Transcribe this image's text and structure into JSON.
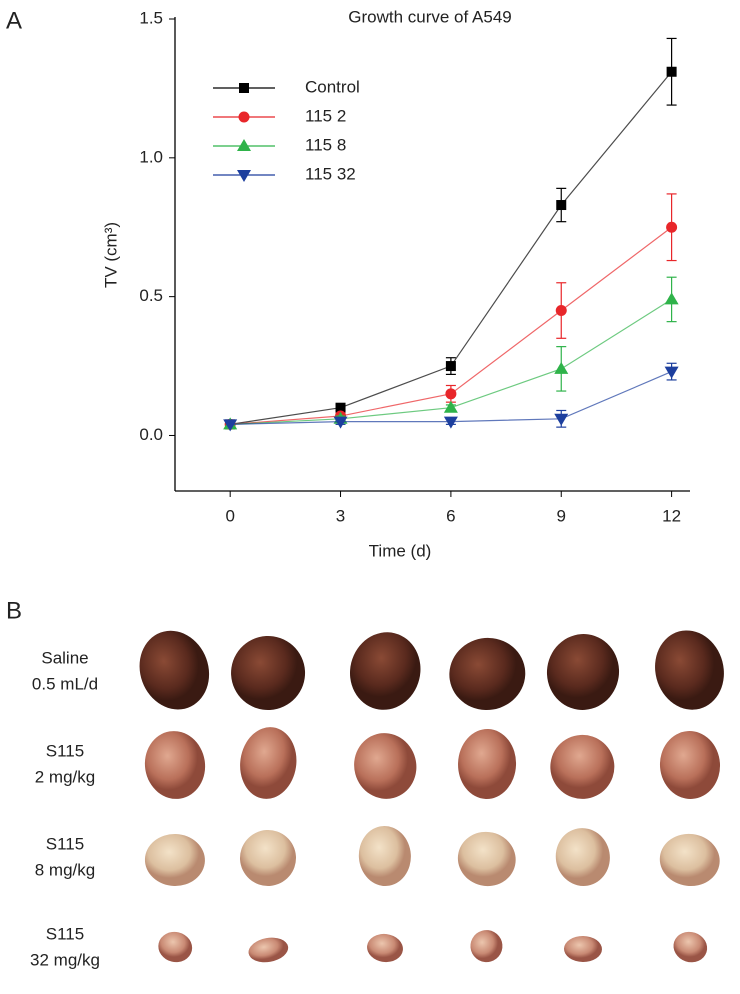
{
  "chart_data": {
    "type": "line",
    "title": "Growth curve of A549",
    "x_label": "Time (d)",
    "y_label": "TV (cm³)",
    "x": [
      0,
      3,
      6,
      9,
      12
    ],
    "xlim": [
      -1.5,
      12.5
    ],
    "xticks": [
      0,
      3,
      6,
      9,
      12
    ],
    "ylim": [
      -0.2,
      1.5
    ],
    "yticks": [
      {
        "value": 0,
        "label": "0.0"
      },
      0.5,
      {
        "value": 1,
        "label": "1.0"
      },
      1.5
    ],
    "legend": "upper left",
    "grid": false,
    "series": [
      {
        "name": "Control",
        "color": "#000000",
        "marker": "square",
        "values": [
          0.04,
          0.1,
          0.25,
          0.83,
          1.31
        ],
        "errors": [
          0,
          0.01,
          0.03,
          0.06,
          0.12
        ]
      },
      {
        "name": "115 2",
        "color": "#e8262a",
        "marker": "circle",
        "values": [
          0.04,
          0.07,
          0.15,
          0.45,
          0.75
        ],
        "errors": [
          0,
          0.01,
          0.03,
          0.1,
          0.12
        ]
      },
      {
        "name": "115 8",
        "color": "#2fb34a",
        "marker": "triangle",
        "values": [
          0.04,
          0.06,
          0.1,
          0.24,
          0.49
        ],
        "errors": [
          0,
          0.01,
          0.01,
          0.08,
          0.08
        ]
      },
      {
        "name": "115 32",
        "color": "#1d3f9e",
        "marker": "triangle-down",
        "values": [
          0.04,
          0.05,
          0.05,
          0.06,
          0.23
        ],
        "errors": [
          0,
          0.01,
          0.01,
          0.03,
          0.03
        ]
      }
    ]
  },
  "panel_labels": [
    "A",
    "B"
  ],
  "photo": {
    "rows": [
      {
        "label": [
          "Saline",
          "0.5 mL/d"
        ]
      },
      {
        "label": [
          "S115",
          "2 mg/kg"
        ]
      },
      {
        "label": [
          "S115",
          "8 mg/kg"
        ]
      },
      {
        "label": [
          "S115",
          "32 mg/kg"
        ]
      }
    ]
  }
}
